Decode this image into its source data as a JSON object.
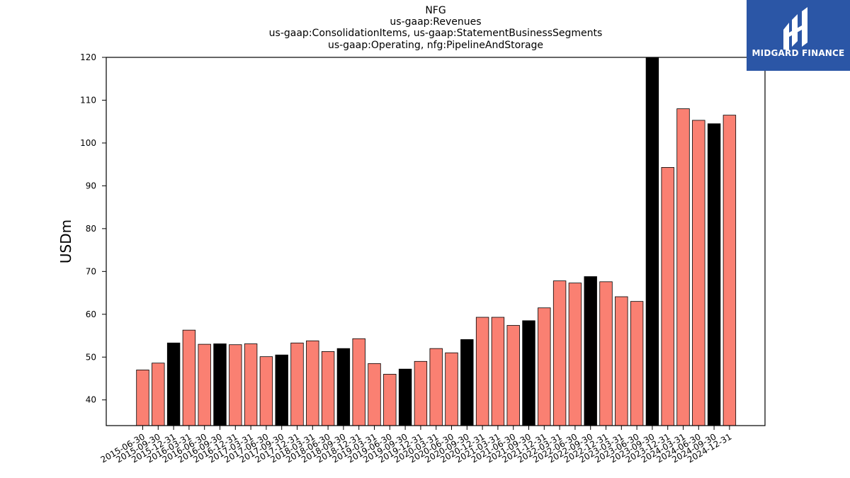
{
  "chart_data": {
    "type": "bar",
    "title_lines": [
      "NFG",
      "us-gaap:Revenues",
      "us-gaap:ConsolidationItems, us-gaap:StatementBusinessSegments",
      "us-gaap:Operating, nfg:PipelineAndStorage"
    ],
    "ylabel": "USDm",
    "ylim": [
      34,
      120
    ],
    "yticks": [
      40,
      50,
      60,
      70,
      80,
      90,
      100,
      110,
      120
    ],
    "grid": false,
    "colors": {
      "quarter": "#fa8072",
      "year_end": "#000000",
      "edge": "#000000"
    },
    "categories": [
      "2015-06-30",
      "2015-09-30",
      "2015-12-31",
      "2016-03-31",
      "2016-06-30",
      "2016-09-30",
      "2016-12-31",
      "2017-03-31",
      "2017-06-30",
      "2017-09-30",
      "2017-12-31",
      "2018-03-31",
      "2018-06-30",
      "2018-09-30",
      "2018-12-31",
      "2019-03-31",
      "2019-06-30",
      "2019-09-30",
      "2019-12-31",
      "2020-03-31",
      "2020-06-30",
      "2020-09-30",
      "2020-12-31",
      "2021-03-31",
      "2021-06-30",
      "2021-09-30",
      "2021-12-31",
      "2022-03-31",
      "2022-06-30",
      "2022-09-30",
      "2022-12-31",
      "2023-03-31",
      "2023-06-30",
      "2023-09-30",
      "2023-12-31",
      "2024-03-31",
      "2024-06-30",
      "2024-09-30",
      "2024-12-31"
    ],
    "values": [
      47.0,
      48.6,
      53.3,
      56.3,
      53.0,
      53.1,
      52.9,
      53.1,
      50.1,
      50.5,
      53.3,
      53.8,
      51.3,
      52.0,
      54.3,
      48.5,
      46.0,
      47.2,
      49.0,
      52.0,
      51.0,
      54.1,
      59.3,
      59.3,
      57.4,
      58.5,
      61.5,
      67.8,
      67.3,
      68.8,
      67.6,
      64.1,
      63.0,
      121.0,
      94.3,
      108.0,
      105.3,
      104.5,
      106.5
    ],
    "highlight": [
      false,
      false,
      true,
      false,
      false,
      true,
      false,
      false,
      false,
      true,
      false,
      false,
      false,
      true,
      false,
      false,
      false,
      true,
      false,
      false,
      false,
      true,
      false,
      false,
      false,
      true,
      false,
      false,
      false,
      true,
      false,
      false,
      false,
      true,
      false,
      false,
      false,
      true,
      false
    ]
  },
  "logo": {
    "text": "MIDGARD FINANCE",
    "bg": "#2b56a6"
  }
}
